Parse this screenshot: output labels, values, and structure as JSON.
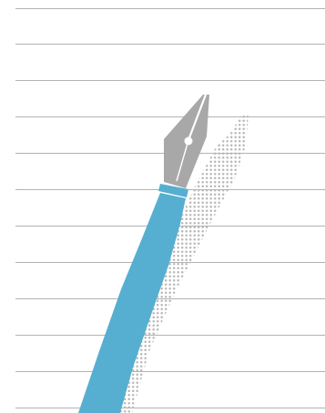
{
  "illustration": {
    "subject": "fountain-pen",
    "ruled_line_count": 12,
    "colors": {
      "background": "#ffffff",
      "ruled_line": "#b3b3b3",
      "pen_barrel": "#56afd0",
      "pen_nib": "#a8a8a8",
      "ferrule_band": "#56afd0",
      "shadow_dots": "#b8b8b8"
    }
  }
}
